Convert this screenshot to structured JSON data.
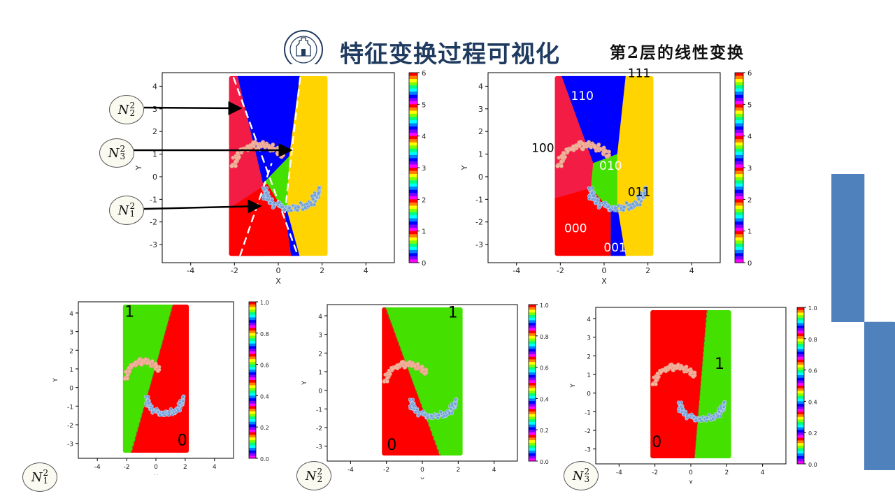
{
  "slide": {
    "title": "特征变换过程可视化",
    "subtitle": "第2层的线性变换"
  },
  "logo": {
    "text": "BEIJING NORMAL UNIVERSITY",
    "year": "1902"
  },
  "colors": {
    "red": "#ff0000",
    "crimson": "#f21c45",
    "blue": "#0000ff",
    "green": "#44e000",
    "yellow": "#ffd400",
    "point_pink": "#f4b7a0",
    "point_blue": "#6f9fd8",
    "accent_blue": "#4f81bd",
    "title_navy": "#1f3b5f"
  },
  "callouts": [
    {
      "label": "N",
      "sup": "2",
      "sub": "2"
    },
    {
      "label": "N",
      "sup": "2",
      "sub": "3"
    },
    {
      "label": "N",
      "sup": "2",
      "sub": "1"
    }
  ],
  "bottom_labels": [
    {
      "label": "N",
      "sup": "2",
      "sub": "1"
    },
    {
      "label": "N",
      "sup": "2",
      "sub": "2"
    },
    {
      "label": "N",
      "sup": "2",
      "sub": "3"
    }
  ],
  "chart_data": [
    {
      "id": "top-left",
      "type": "scatter",
      "title": "",
      "xlabel": "X",
      "ylabel": "Y",
      "xlim": [
        -5.3,
        5.3
      ],
      "ylim": [
        -3.8,
        4.6
      ],
      "xticks": [
        -4,
        -2,
        0,
        2,
        4
      ],
      "yticks": [
        -3,
        -2,
        -1,
        0,
        1,
        2,
        3,
        4
      ],
      "colorbar": {
        "min": 0,
        "max": 6,
        "ticks": [
          "0",
          "1",
          "2",
          "3",
          "4",
          "5",
          "6"
        ]
      },
      "region_labels": [],
      "dashed_boundaries": true
    },
    {
      "id": "top-right",
      "type": "scatter",
      "title": "",
      "xlabel": "X",
      "ylabel": "Y",
      "xlim": [
        -5.3,
        5.3
      ],
      "ylim": [
        -3.8,
        4.6
      ],
      "xticks": [
        -4,
        -2,
        0,
        2,
        4
      ],
      "yticks": [
        -3,
        -2,
        -1,
        0,
        1,
        2,
        3,
        4
      ],
      "colorbar": {
        "min": 0,
        "max": 6,
        "ticks": [
          "0",
          "1",
          "2",
          "3",
          "4",
          "5",
          "6"
        ]
      },
      "region_labels": [
        {
          "text": "111",
          "x": 1.6,
          "y": 4.4,
          "color": "#000000"
        },
        {
          "text": "110",
          "x": -1.0,
          "y": 3.4,
          "color": "#ffffff"
        },
        {
          "text": "100",
          "x": -2.8,
          "y": 1.1,
          "color": "#000000"
        },
        {
          "text": "010",
          "x": 0.3,
          "y": 0.3,
          "color": "#ffffff"
        },
        {
          "text": "011",
          "x": 1.6,
          "y": -0.85,
          "color": "#000000"
        },
        {
          "text": "000",
          "x": -1.3,
          "y": -2.45,
          "color": "#ffffff"
        },
        {
          "text": "001",
          "x": 0.5,
          "y": -3.3,
          "color": "#ffffff"
        }
      ],
      "dashed_boundaries": false
    },
    {
      "id": "bottom-1",
      "type": "scatter",
      "title": "",
      "xlabel": "X",
      "ylabel": "Y",
      "xlim": [
        -5.3,
        5.3
      ],
      "ylim": [
        -3.8,
        4.6
      ],
      "xticks": [
        -4,
        -2,
        0,
        2,
        4
      ],
      "yticks": [
        -3,
        -2,
        -1,
        0,
        1,
        2,
        3,
        4
      ],
      "colorbar": {
        "min": 0,
        "max": 1,
        "ticks": [
          "0.0",
          "0.2",
          "0.4",
          "0.6",
          "0.8",
          "1.0"
        ]
      },
      "region_labels": [
        {
          "text": "1",
          "x": -1.8,
          "y": 3.8,
          "color": "#000000"
        },
        {
          "text": "0",
          "x": 1.8,
          "y": -3.1,
          "color": "#000000"
        }
      ]
    },
    {
      "id": "bottom-2",
      "type": "scatter",
      "title": "",
      "xlabel": "X",
      "ylabel": "Y",
      "xlim": [
        -5.3,
        5.3
      ],
      "ylim": [
        -3.8,
        4.6
      ],
      "xticks": [
        -4,
        -2,
        0,
        2,
        4
      ],
      "yticks": [
        -3,
        -2,
        -1,
        0,
        1,
        2,
        3,
        4
      ],
      "colorbar": {
        "min": 0,
        "max": 1,
        "ticks": [
          "0.0",
          "0.2",
          "0.4",
          "0.6",
          "0.8",
          "1.0"
        ]
      },
      "region_labels": [
        {
          "text": "1",
          "x": 1.7,
          "y": 3.9,
          "color": "#000000"
        },
        {
          "text": "0",
          "x": -1.7,
          "y": -3.2,
          "color": "#000000"
        }
      ]
    },
    {
      "id": "bottom-3",
      "type": "scatter",
      "title": "",
      "xlabel": "X",
      "ylabel": "Y",
      "xlim": [
        -5.3,
        5.3
      ],
      "ylim": [
        -3.8,
        4.6
      ],
      "xticks": [
        -4,
        -2,
        0,
        2,
        4
      ],
      "yticks": [
        -3,
        -2,
        -1,
        0,
        1,
        2,
        3,
        4
      ],
      "colorbar": {
        "min": 0,
        "max": 1,
        "ticks": [
          "0.0",
          "0.2",
          "0.4",
          "0.6",
          "0.8",
          "1.0"
        ]
      },
      "region_labels": [
        {
          "text": "1",
          "x": 1.6,
          "y": 1.3,
          "color": "#000000"
        },
        {
          "text": "0",
          "x": -1.9,
          "y": -2.9,
          "color": "#000000"
        }
      ]
    }
  ]
}
